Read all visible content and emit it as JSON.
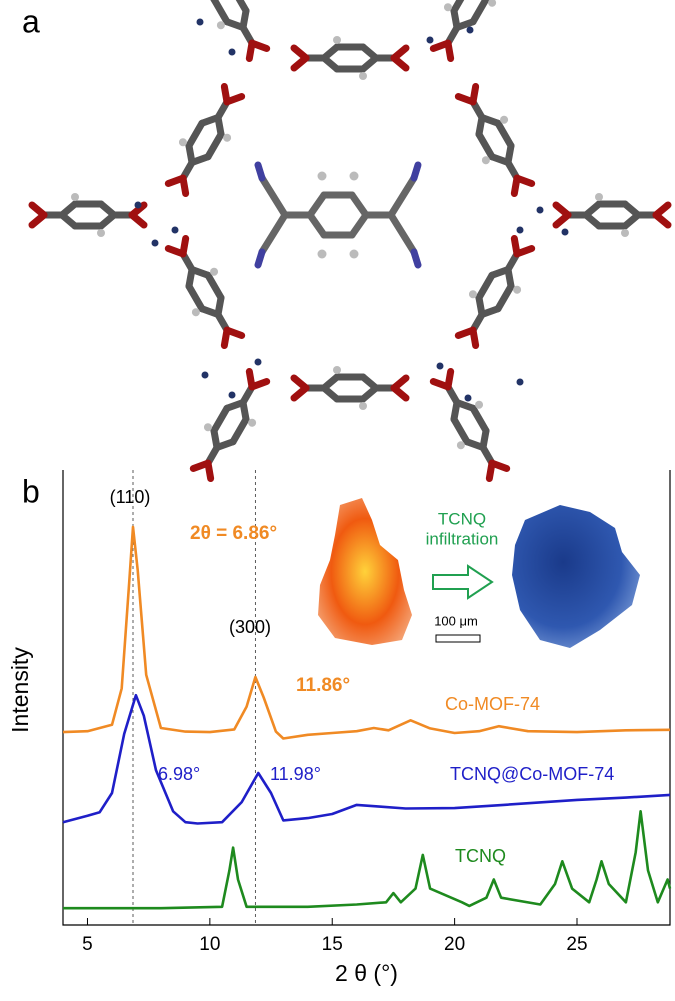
{
  "panel_a": {
    "label": "a"
  },
  "chart_data": {
    "type": "line",
    "panel_label": "b",
    "x_label": "2 θ (°)",
    "y_label": "Intensity",
    "xlim": [
      4,
      28.8
    ],
    "xticks": [
      5,
      10,
      15,
      20,
      25
    ],
    "ylim": [
      0,
      100
    ],
    "vlines": [
      6.86,
      11.86
    ],
    "series": [
      {
        "name": "Co-MOF-74",
        "color": "#f08a24",
        "x": [
          4,
          5,
          6,
          6.4,
          6.7,
          6.86,
          7.05,
          7.4,
          8,
          9,
          10,
          11,
          11.5,
          11.86,
          12.2,
          12.7,
          13,
          14,
          15,
          16,
          16.7,
          17.3,
          18.2,
          19,
          20,
          21,
          21.8,
          23,
          25,
          27,
          28.8
        ],
        "values": [
          42.4,
          42.6,
          44,
          52,
          75,
          87.5,
          78,
          55,
          43.3,
          42.5,
          42.4,
          43,
          48,
          54.5,
          50,
          42.5,
          41,
          41.8,
          42.2,
          42.6,
          43.3,
          42.8,
          45,
          43.2,
          42.2,
          42.6,
          43.7,
          42.6,
          42.4,
          42.8,
          42.9
        ]
      },
      {
        "name": "TCNQ@Co-MOF-74",
        "color": "#1f1fc8",
        "x": [
          4,
          5,
          5.5,
          6,
          6.5,
          6.98,
          7.3,
          7.8,
          8.5,
          9,
          9.5,
          10.5,
          11.3,
          11.98,
          12.5,
          13,
          14,
          15,
          16,
          17,
          18,
          20,
          22,
          25,
          27,
          28.8
        ],
        "values": [
          22.6,
          24,
          24.8,
          29,
          42,
          50.5,
          46,
          34,
          25,
          22.6,
          22.3,
          22.6,
          27,
          33.4,
          29,
          23,
          23.5,
          24.4,
          26.4,
          26,
          25.6,
          25.7,
          26.4,
          27.5,
          28,
          28.6
        ]
      },
      {
        "name": "TCNQ",
        "color": "#1e8a1e",
        "x": [
          4,
          8,
          10.5,
          10.8,
          10.95,
          11.15,
          11.5,
          14,
          16,
          17.2,
          17.5,
          17.8,
          18.4,
          18.7,
          19,
          20.3,
          20.6,
          21.3,
          21.6,
          21.9,
          23.5,
          24.1,
          24.4,
          24.8,
          25.5,
          25.8,
          26,
          26.3,
          27,
          27.4,
          27.6,
          27.9,
          28.3,
          28.7,
          28.8
        ],
        "values": [
          3.7,
          3.7,
          4,
          12,
          17,
          10,
          4,
          4,
          4.5,
          5,
          7,
          5,
          8,
          15.4,
          8,
          5,
          4.2,
          6,
          10,
          6,
          4.5,
          9,
          14,
          8,
          5,
          10,
          14,
          9,
          5,
          16,
          25,
          12,
          5,
          10,
          8
        ]
      }
    ],
    "annotations": [
      {
        "text": "(110)",
        "color": "#000000"
      },
      {
        "text": "2θ = 6.86°",
        "color": "#f08a24"
      },
      {
        "text": "(300)",
        "color": "#000000"
      },
      {
        "text": "11.86°",
        "color": "#f08a24"
      },
      {
        "text": "Co-MOF-74",
        "color": "#f08a24"
      },
      {
        "text": "6.98°",
        "color": "#1f1fc8"
      },
      {
        "text": "11.98°",
        "color": "#1f1fc8"
      },
      {
        "text": "TCNQ@Co-MOF-74",
        "color": "#1f1fc8"
      },
      {
        "text": "TCNQ",
        "color": "#1e8a1e"
      }
    ],
    "inset": {
      "label_lines": [
        "TCNQ",
        "infiltration"
      ],
      "label_color": "#20a050",
      "scale_bar": "100 μm"
    }
  }
}
